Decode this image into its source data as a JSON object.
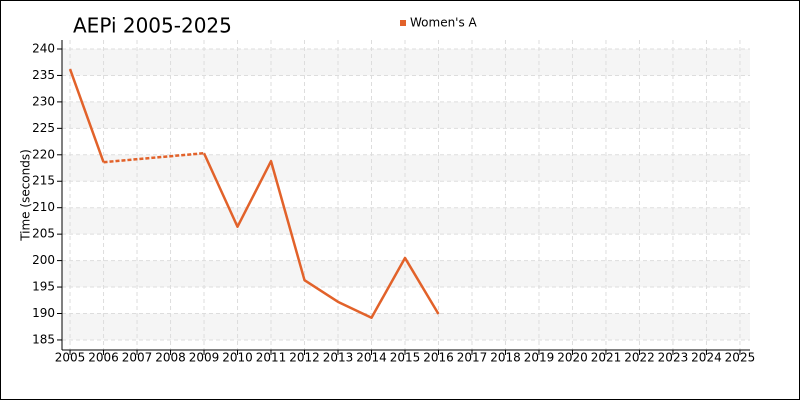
{
  "chart_data": {
    "type": "line",
    "title": "AEPi 2005-2025",
    "y_label": "Time (seconds)",
    "x": [
      2005,
      2006,
      2007,
      2008,
      2009,
      2010,
      2011,
      2012,
      2013,
      2014,
      2015,
      2016
    ],
    "series": [
      {
        "name": "Women's A",
        "color": "#e2622a",
        "values": [
          236.2,
          218.6,
          null,
          null,
          220.3,
          206.4,
          218.8,
          196.3,
          192.2,
          189.2,
          200.5,
          189.9
        ]
      }
    ],
    "xlim": [
      2004.76,
      2025.3
    ],
    "xticks": [
      2005,
      2006,
      2007,
      2008,
      2009,
      2010,
      2011,
      2012,
      2013,
      2014,
      2015,
      2016,
      2017,
      2018,
      2019,
      2020,
      2021,
      2022,
      2023,
      2024,
      2025
    ],
    "ylim": [
      183.1,
      241.7
    ],
    "yticks": [
      185,
      190,
      195,
      200,
      205,
      210,
      215,
      220,
      225,
      230,
      235,
      240
    ],
    "grid": true,
    "legend": "top"
  }
}
